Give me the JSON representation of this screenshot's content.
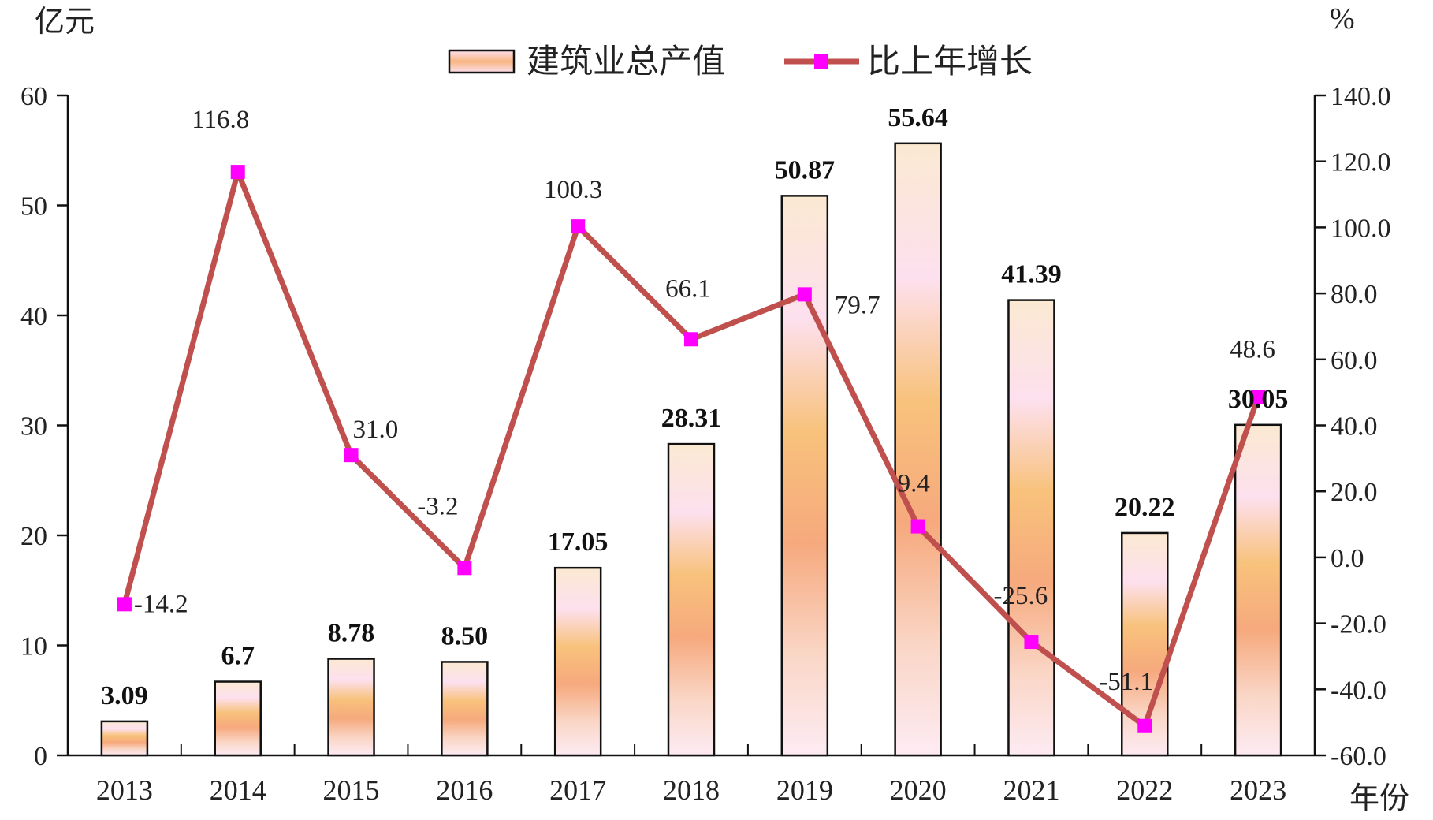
{
  "chart_data": {
    "type": "bar+line",
    "title": "",
    "left_unit": "亿元",
    "right_unit": "%",
    "x_unit": "年份",
    "categories": [
      "2013",
      "2014",
      "2015",
      "2016",
      "2017",
      "2018",
      "2019",
      "2020",
      "2021",
      "2022",
      "2023"
    ],
    "left_axis": {
      "ylim": [
        0,
        60
      ],
      "ticks": [
        "0",
        "10",
        "20",
        "30",
        "40",
        "50",
        "60"
      ]
    },
    "right_axis": {
      "ylim": [
        -60,
        140
      ],
      "ticks": [
        "-60.0",
        "-40.0",
        "-20.0",
        "0.0",
        "20.0",
        "40.0",
        "60.0",
        "80.0",
        "100.0",
        "120.0",
        "140.0"
      ]
    },
    "series": [
      {
        "name": "建筑业总产值",
        "kind": "bar",
        "axis": "left",
        "values": [
          3.09,
          6.7,
          8.78,
          8.5,
          17.05,
          28.31,
          50.87,
          55.64,
          41.39,
          20.22,
          30.05
        ],
        "labels": [
          "3.09",
          "6.7",
          "8.78",
          "8.50",
          "17.05",
          "28.31",
          "50.87",
          "55.64",
          "41.39",
          "20.22",
          "30.05"
        ]
      },
      {
        "name": "比上年增长",
        "kind": "line",
        "axis": "right",
        "color": "#c0504d",
        "marker_color": "#ff00ff",
        "values": [
          -14.2,
          116.8,
          31.0,
          -3.2,
          100.3,
          66.1,
          79.7,
          9.4,
          -25.6,
          -51.1,
          48.6
        ],
        "labels": [
          "-14.2",
          "116.8",
          "31.0",
          "-3.2",
          "100.3",
          "66.1",
          "79.7",
          "9.4",
          "-25.6",
          "-51.1",
          "48.6"
        ]
      }
    ],
    "legend_position": "top"
  }
}
